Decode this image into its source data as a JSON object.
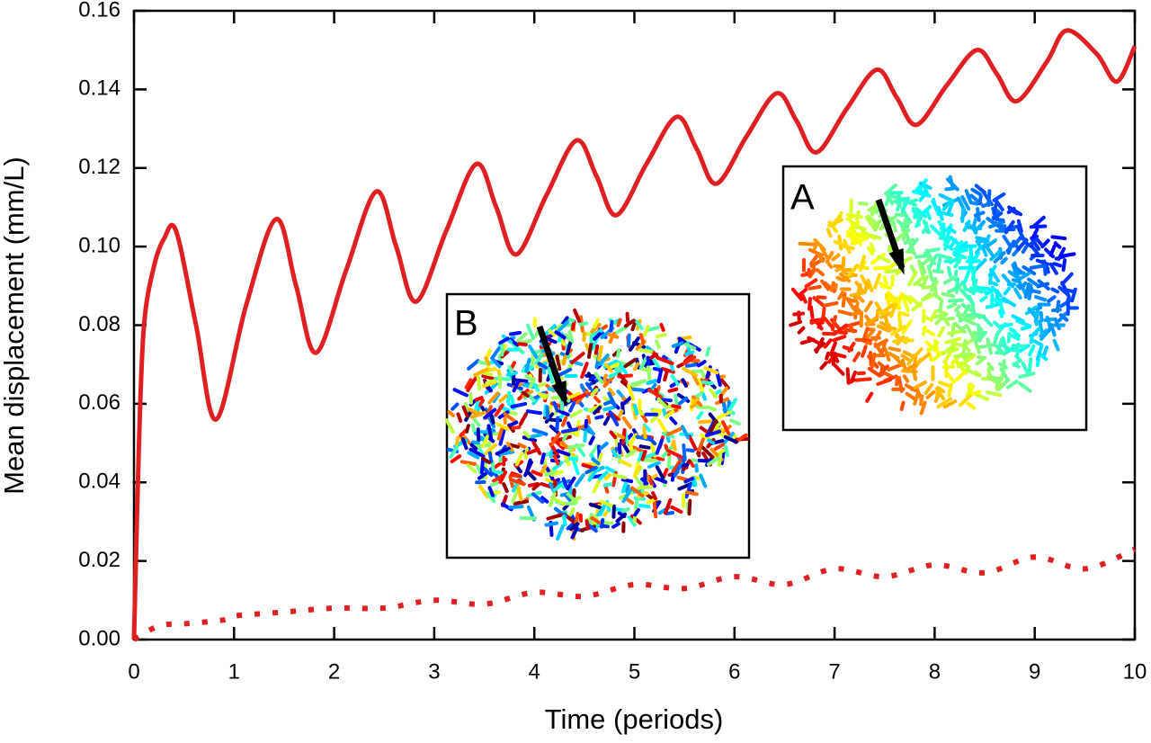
{
  "chart_data": {
    "type": "line",
    "x_label": "Time (periods)",
    "y_label": "Mean displacement (mm/L)",
    "xlim": [
      0,
      10
    ],
    "ylim": [
      0,
      0.16
    ],
    "xticks": [
      0,
      1,
      2,
      3,
      4,
      5,
      6,
      7,
      8,
      9,
      10
    ],
    "yticks": [
      {
        "value": 0,
        "label": "0.00"
      },
      0.02,
      0.04,
      0.06,
      0.08,
      {
        "value": 0.1,
        "label": "0.10"
      },
      0.12,
      0.14,
      0.16
    ],
    "series": [
      {
        "color": "#e02020",
        "style": "solid",
        "x": [
          0,
          0.05,
          0.1,
          0.2,
          0.3,
          0.42,
          0.62,
          0.82,
          1.12,
          1.42,
          1.62,
          1.82,
          2.12,
          2.42,
          2.62,
          2.82,
          3.12,
          3.42,
          3.62,
          3.82,
          4.12,
          4.42,
          4.62,
          4.82,
          5.12,
          5.42,
          5.62,
          5.82,
          6.12,
          6.42,
          6.62,
          6.82,
          7.12,
          7.42,
          7.62,
          7.82,
          8.12,
          8.42,
          8.62,
          8.82,
          9.12,
          9.32,
          9.62,
          9.82,
          10
        ],
        "values": [
          0,
          0.05,
          0.08,
          0.095,
          0.102,
          0.104,
          0.08,
          0.056,
          0.085,
          0.107,
          0.09,
          0.073,
          0.094,
          0.114,
          0.1,
          0.086,
          0.104,
          0.121,
          0.11,
          0.098,
          0.113,
          0.127,
          0.118,
          0.108,
          0.121,
          0.133,
          0.125,
          0.116,
          0.128,
          0.139,
          0.132,
          0.124,
          0.135,
          0.145,
          0.138,
          0.131,
          0.141,
          0.15,
          0.144,
          0.137,
          0.147,
          0.155,
          0.149,
          0.142,
          0.151
        ]
      },
      {
        "color": "#e02020",
        "style": "dotted",
        "x": [
          0,
          0.25,
          0.5,
          0.9,
          1,
          1.5,
          2,
          2.5,
          3,
          3.5,
          4,
          4.5,
          5,
          5.5,
          6,
          6.5,
          7,
          7.5,
          8,
          8.5,
          9,
          9.5,
          10
        ],
        "values": [
          0,
          0.0035,
          0.004,
          0.005,
          0.006,
          0.007,
          0.008,
          0.008,
          0.01,
          0.009,
          0.012,
          0.011,
          0.014,
          0.013,
          0.016,
          0.014,
          0.018,
          0.016,
          0.019,
          0.017,
          0.021,
          0.018,
          0.023
        ]
      }
    ],
    "insets": [
      {
        "label": "A"
      },
      {
        "label": "B"
      }
    ]
  }
}
